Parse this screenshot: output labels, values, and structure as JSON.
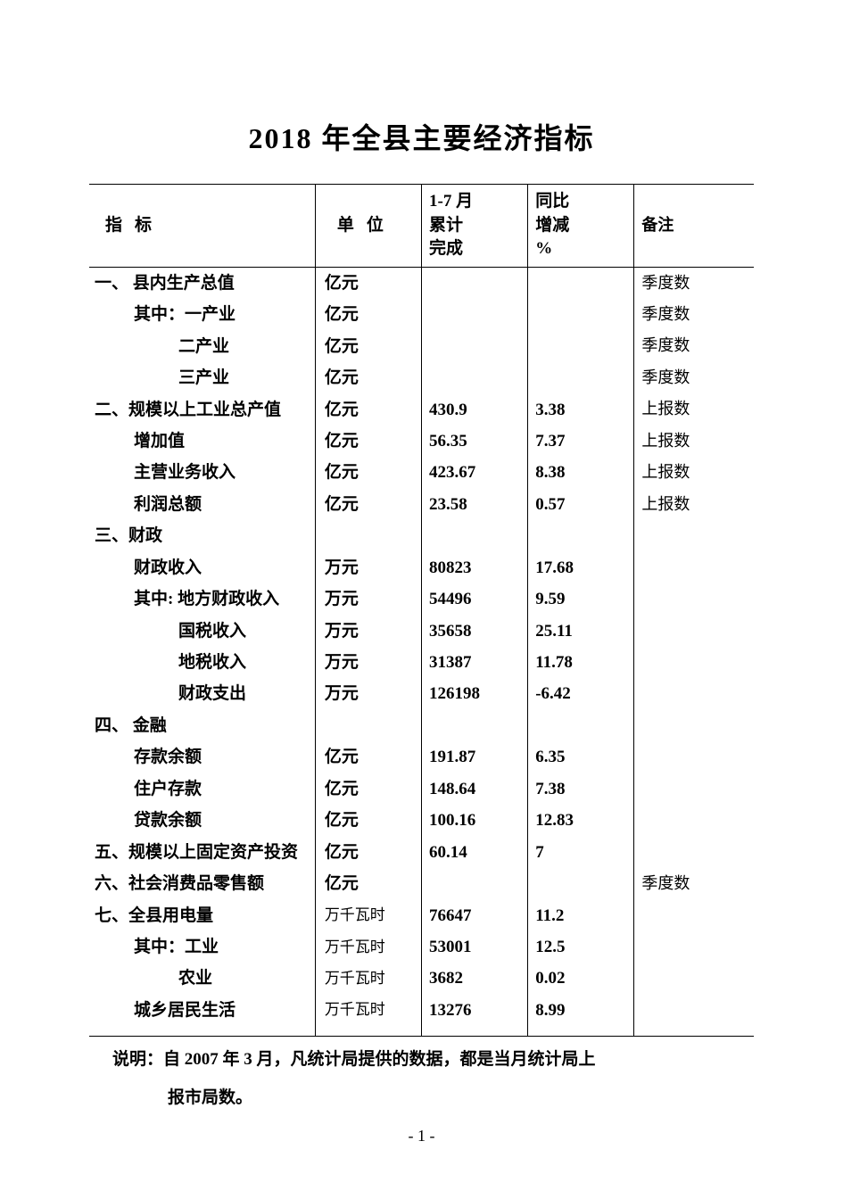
{
  "title": "2018 年全县主要经济指标",
  "headers": {
    "indicator": "指标",
    "unit": "单位",
    "value": "1-7 月\n累计\n完成",
    "change": "同比\n增减\n%",
    "note": "备注"
  },
  "rows": [
    {
      "indicator": "一、 县内生产总值",
      "indent": 0,
      "unit": "亿元",
      "value": "",
      "change": "",
      "note": "季度数",
      "unit_small": false
    },
    {
      "indicator": "其中：一产业",
      "indent": 1,
      "unit": "亿元",
      "value": "",
      "change": "",
      "note": "季度数",
      "unit_small": false
    },
    {
      "indicator": "二产业",
      "indent": 2,
      "unit": "亿元",
      "value": "",
      "change": "",
      "note": "季度数",
      "unit_small": false
    },
    {
      "indicator": "三产业",
      "indent": 2,
      "unit": "亿元",
      "value": "",
      "change": "",
      "note": "季度数",
      "unit_small": false
    },
    {
      "indicator": "二、规模以上工业总产值",
      "indent": 0,
      "unit": "亿元",
      "value": "430.9",
      "change": "3.38",
      "note": "上报数",
      "unit_small": false
    },
    {
      "indicator": "增加值",
      "indent": 1,
      "unit": "亿元",
      "value": "56.35",
      "change": "7.37",
      "note": "上报数",
      "unit_small": false
    },
    {
      "indicator": "主营业务收入",
      "indent": 1,
      "unit": "亿元",
      "value": "423.67",
      "change": "8.38",
      "note": "上报数",
      "unit_small": false
    },
    {
      "indicator": "利润总额",
      "indent": 1,
      "unit": "亿元",
      "value": "23.58",
      "change": "0.57",
      "note": "上报数",
      "unit_small": false
    },
    {
      "indicator": "三、财政",
      "indent": 0,
      "unit": "",
      "value": "",
      "change": "",
      "note": "",
      "unit_small": false
    },
    {
      "indicator": "财政收入",
      "indent": 1,
      "unit": "万元",
      "value": "80823",
      "change": "17.68",
      "note": "",
      "unit_small": false
    },
    {
      "indicator": "其中: 地方财政收入",
      "indent": 1,
      "unit": "万元",
      "value": "54496",
      "change": "9.59",
      "note": "",
      "unit_small": false
    },
    {
      "indicator": "国税收入",
      "indent": 2,
      "unit": "万元",
      "value": "35658",
      "change": "25.11",
      "note": "",
      "unit_small": false
    },
    {
      "indicator": "地税收入",
      "indent": 2,
      "unit": "万元",
      "value": "31387",
      "change": "11.78",
      "note": "",
      "unit_small": false
    },
    {
      "indicator": "财政支出",
      "indent": 2,
      "unit": "万元",
      "value": "126198",
      "change": "-6.42",
      "note": "",
      "unit_small": false
    },
    {
      "indicator": "四、 金融",
      "indent": 0,
      "unit": "",
      "value": "",
      "change": "",
      "note": "",
      "unit_small": false
    },
    {
      "indicator": "存款余额",
      "indent": 1,
      "unit": "亿元",
      "value": "191.87",
      "change": "6.35",
      "note": "",
      "unit_small": false
    },
    {
      "indicator": "住户存款",
      "indent": 1,
      "unit": "亿元",
      "value": "148.64",
      "change": "7.38",
      "note": "",
      "unit_small": false
    },
    {
      "indicator": "贷款余额",
      "indent": 1,
      "unit": "亿元",
      "value": "100.16",
      "change": "12.83",
      "note": "",
      "unit_small": false
    },
    {
      "indicator": "五、规模以上固定资产投资",
      "indent": 0,
      "unit": "亿元",
      "value": "60.14",
      "change": "7",
      "note": "",
      "unit_small": false
    },
    {
      "indicator": "六、社会消费品零售额",
      "indent": 0,
      "unit": "亿元",
      "value": "",
      "change": "",
      "note": "季度数",
      "unit_small": false
    },
    {
      "indicator": "七、全县用电量",
      "indent": 0,
      "unit": "万千瓦时",
      "value": "76647",
      "change": "11.2",
      "note": "",
      "unit_small": true
    },
    {
      "indicator": "其中：工业",
      "indent": 1,
      "unit": "万千瓦时",
      "value": "53001",
      "change": "12.5",
      "note": "",
      "unit_small": true
    },
    {
      "indicator": "农业",
      "indent": 2,
      "unit": "万千瓦时",
      "value": "3682",
      "change": "0.02",
      "note": "",
      "unit_small": true
    },
    {
      "indicator": "城乡居民生活",
      "indent": 1,
      "unit": "万千瓦时",
      "value": "13276",
      "change": "8.99",
      "note": "",
      "unit_small": true
    }
  ],
  "explain_line1": "说明：自 2007 年 3 月，凡统计局提供的数据，都是当月统计局上",
  "explain_line2": "报市局数。",
  "page_number": "- 1 -"
}
